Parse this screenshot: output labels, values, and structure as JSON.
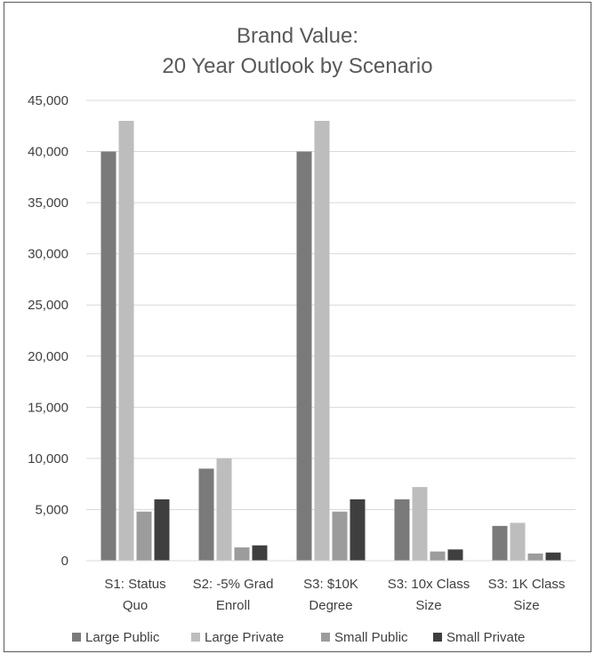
{
  "chart_data": {
    "type": "bar",
    "title": [
      "Brand Value:",
      "20 Year Outlook by Scenario"
    ],
    "categories": [
      [
        "S1: Status",
        "Quo"
      ],
      [
        "S2: -5% Grad",
        "Enroll"
      ],
      [
        "S3: $10K",
        "Degree"
      ],
      [
        "S3: 10x Class",
        "Size"
      ],
      [
        "S3: 1K Class",
        "Size"
      ]
    ],
    "series": [
      {
        "name": "Large Public",
        "color": "#7a7a7a",
        "values": [
          40000,
          9000,
          40000,
          6000,
          3400
        ]
      },
      {
        "name": "Large Private",
        "color": "#bdbdbd",
        "values": [
          43000,
          10000,
          43000,
          7200,
          3700
        ]
      },
      {
        "name": "Small Public",
        "color": "#9c9c9c",
        "values": [
          4800,
          1300,
          4800,
          900,
          700
        ]
      },
      {
        "name": "Small Private",
        "color": "#3f3f3f",
        "values": [
          6000,
          1500,
          6000,
          1100,
          800
        ]
      }
    ],
    "ylim": [
      0,
      45000
    ],
    "yticks": [
      "0",
      "5,000",
      "10,000",
      "15,000",
      "20,000",
      "25,000",
      "30,000",
      "35,000",
      "40,000",
      "45,000"
    ],
    "ytick_values": [
      0,
      5000,
      10000,
      15000,
      20000,
      25000,
      30000,
      35000,
      40000,
      45000
    ],
    "grid": true,
    "legend": "bottom"
  }
}
